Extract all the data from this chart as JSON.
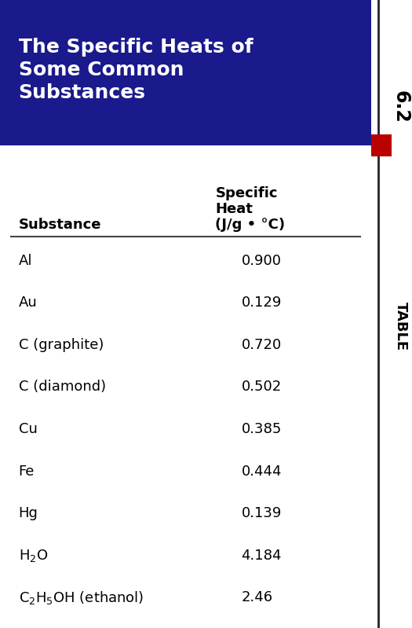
{
  "title_line1": "The Specific Heats of",
  "title_line2": "Some Common",
  "title_line3": "Substances",
  "table_number": "6.2",
  "header_col1": "Substance",
  "header_col2": "Specific\nHeat\n(J/g • °C)",
  "substances_render": [
    "Al",
    "Au",
    "C (graphite)",
    "C (diamond)",
    "Cu",
    "Fe",
    "Hg",
    "H$_2$O",
    "C$_2$H$_5$OH (ethanol)"
  ],
  "values": [
    "0.900",
    "0.129",
    "0.720",
    "0.502",
    "0.385",
    "0.444",
    "0.139",
    "4.184",
    "2.46"
  ],
  "header_bg": "#1a1a8c",
  "header_text_color": "#ffffff",
  "table_bg": "#fdf5d0",
  "text_color": "#000000",
  "sidebar_bg": "#ffffff",
  "red_square_color": "#bb0000",
  "figsize": [
    5.25,
    7.99
  ],
  "dpi": 100,
  "title_fontsize": 18,
  "header_col_fontsize": 13,
  "data_fontsize": 13,
  "sidebar_label_fontsize": 13,
  "sidebar_number_fontsize": 17
}
